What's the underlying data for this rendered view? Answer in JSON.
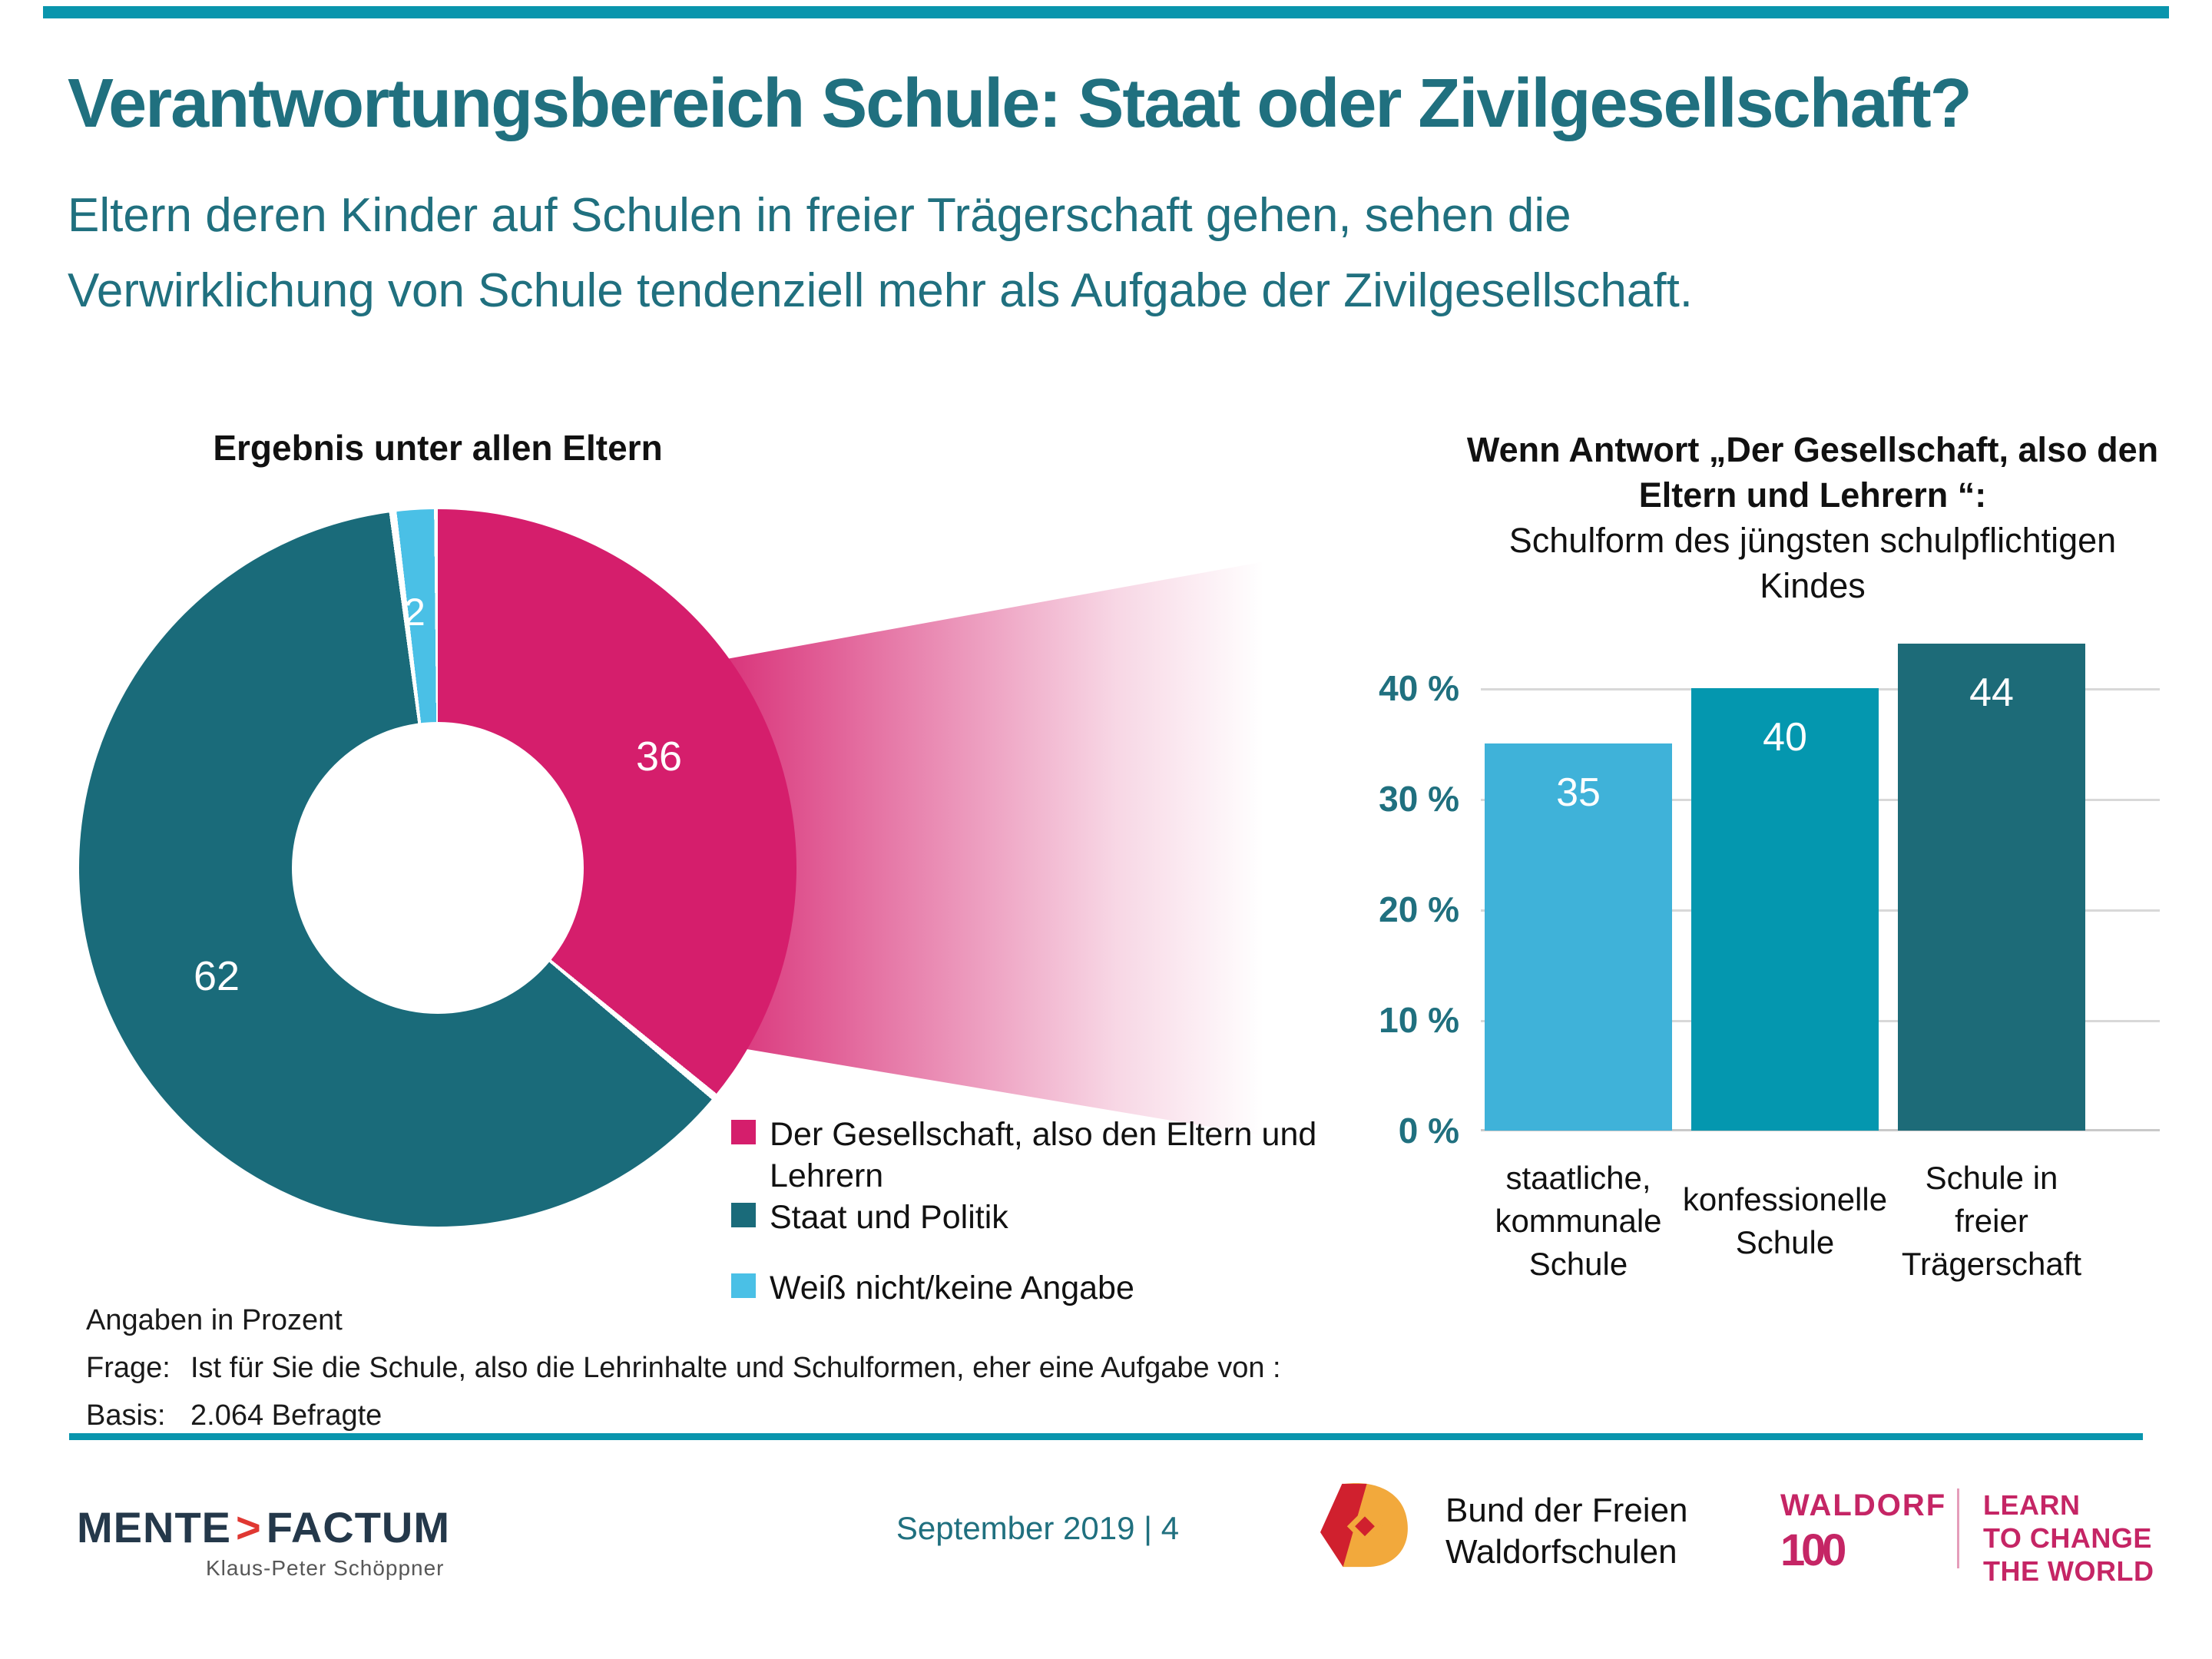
{
  "header": {
    "title": "Verantwortungsbereich Schule: Staat oder Zivilgesellschaft?",
    "subtitle_lines": [
      "Eltern deren Kinder auf Schulen in freier Trägerschaft gehen, sehen die",
      "Verwirklichung von Schule tendenziell mehr als Aufgabe der Zivilgesellschaft."
    ]
  },
  "chart_data": [
    {
      "type": "pie",
      "variant": "donut",
      "title": "Ergebnis unter allen Eltern",
      "labels": [
        "Der Gesellschaft, also den Eltern und Lehrern",
        "Staat und Politik",
        "Weiß nicht/keine Angabe"
      ],
      "values": [
        36,
        62,
        2
      ],
      "colors": [
        "#D51E6C",
        "#1A6B7A",
        "#4AC0E6"
      ],
      "unit": "Prozent",
      "start_angle_deg": 0,
      "direction": "clockwise"
    },
    {
      "type": "bar",
      "title_lines_bold": [
        "Wenn Antwort „Der Gesellschaft, also den",
        "Eltern und Lehrern “:"
      ],
      "title_lines": [
        "Schulform des jüngsten schulpflichtigen",
        "Kindes"
      ],
      "categories": [
        "staatliche, kommunale Schule",
        "konfessionelle Schule",
        "Schule in freier Trägerschaft"
      ],
      "categories_lines": [
        [
          "staatliche,",
          "kommunale",
          "Schule"
        ],
        [
          "konfessionelle",
          "Schule"
        ],
        [
          "Schule in",
          "freier",
          "Trägerschaft"
        ]
      ],
      "values": [
        35,
        40,
        44
      ],
      "colors": [
        "#3FB2D9",
        "#0497AF",
        "#1D6B78"
      ],
      "yticks": [
        "40 %",
        "30 %",
        "20 %",
        "10 %",
        "0 %"
      ],
      "ylim": [
        0,
        45
      ],
      "grid": true,
      "unit": "Prozent"
    }
  ],
  "legend": {
    "items": [
      {
        "label_lines": [
          "Der Gesellschaft, also den Eltern und",
          "Lehrern"
        ],
        "color": "#D51E6C"
      },
      {
        "label_lines": [
          "Staat und Politik"
        ],
        "color": "#1A6B7A"
      },
      {
        "label_lines": [
          "Weiß nicht/keine Angabe"
        ],
        "color": "#4AC0E6"
      }
    ]
  },
  "notes": {
    "angaben": "Angaben in Prozent",
    "frage_label": "Frage:",
    "frage_text": "Ist für Sie die Schule, also die Lehrinhalte und Schulformen, eher eine Aufgabe von :",
    "basis_label": "Basis:",
    "basis_text": "2.064 Befragte"
  },
  "footer": {
    "mentefactum": {
      "part1": "MENTE",
      "chevron": ">",
      "part2": "FACTUM",
      "subline": "Klaus-Peter Schöppner"
    },
    "date_page": "September 2019 | 4",
    "bund_lines": [
      "Bund der Freien",
      "Waldorfschulen"
    ],
    "waldorf100": {
      "line1": "WALDORF",
      "line2": "100",
      "tagline_lines": [
        "LEARN",
        "TO CHANGE",
        "THE WORLD"
      ]
    }
  },
  "colors": {
    "accent_teal_bar": "#0995AD",
    "text_teal": "#20707F",
    "pink": "#D51E6C",
    "waldorf_pink": "#C52565",
    "mente_navy": "#24384A",
    "mente_red": "#E03832",
    "gridline": "#D8D8D8"
  }
}
